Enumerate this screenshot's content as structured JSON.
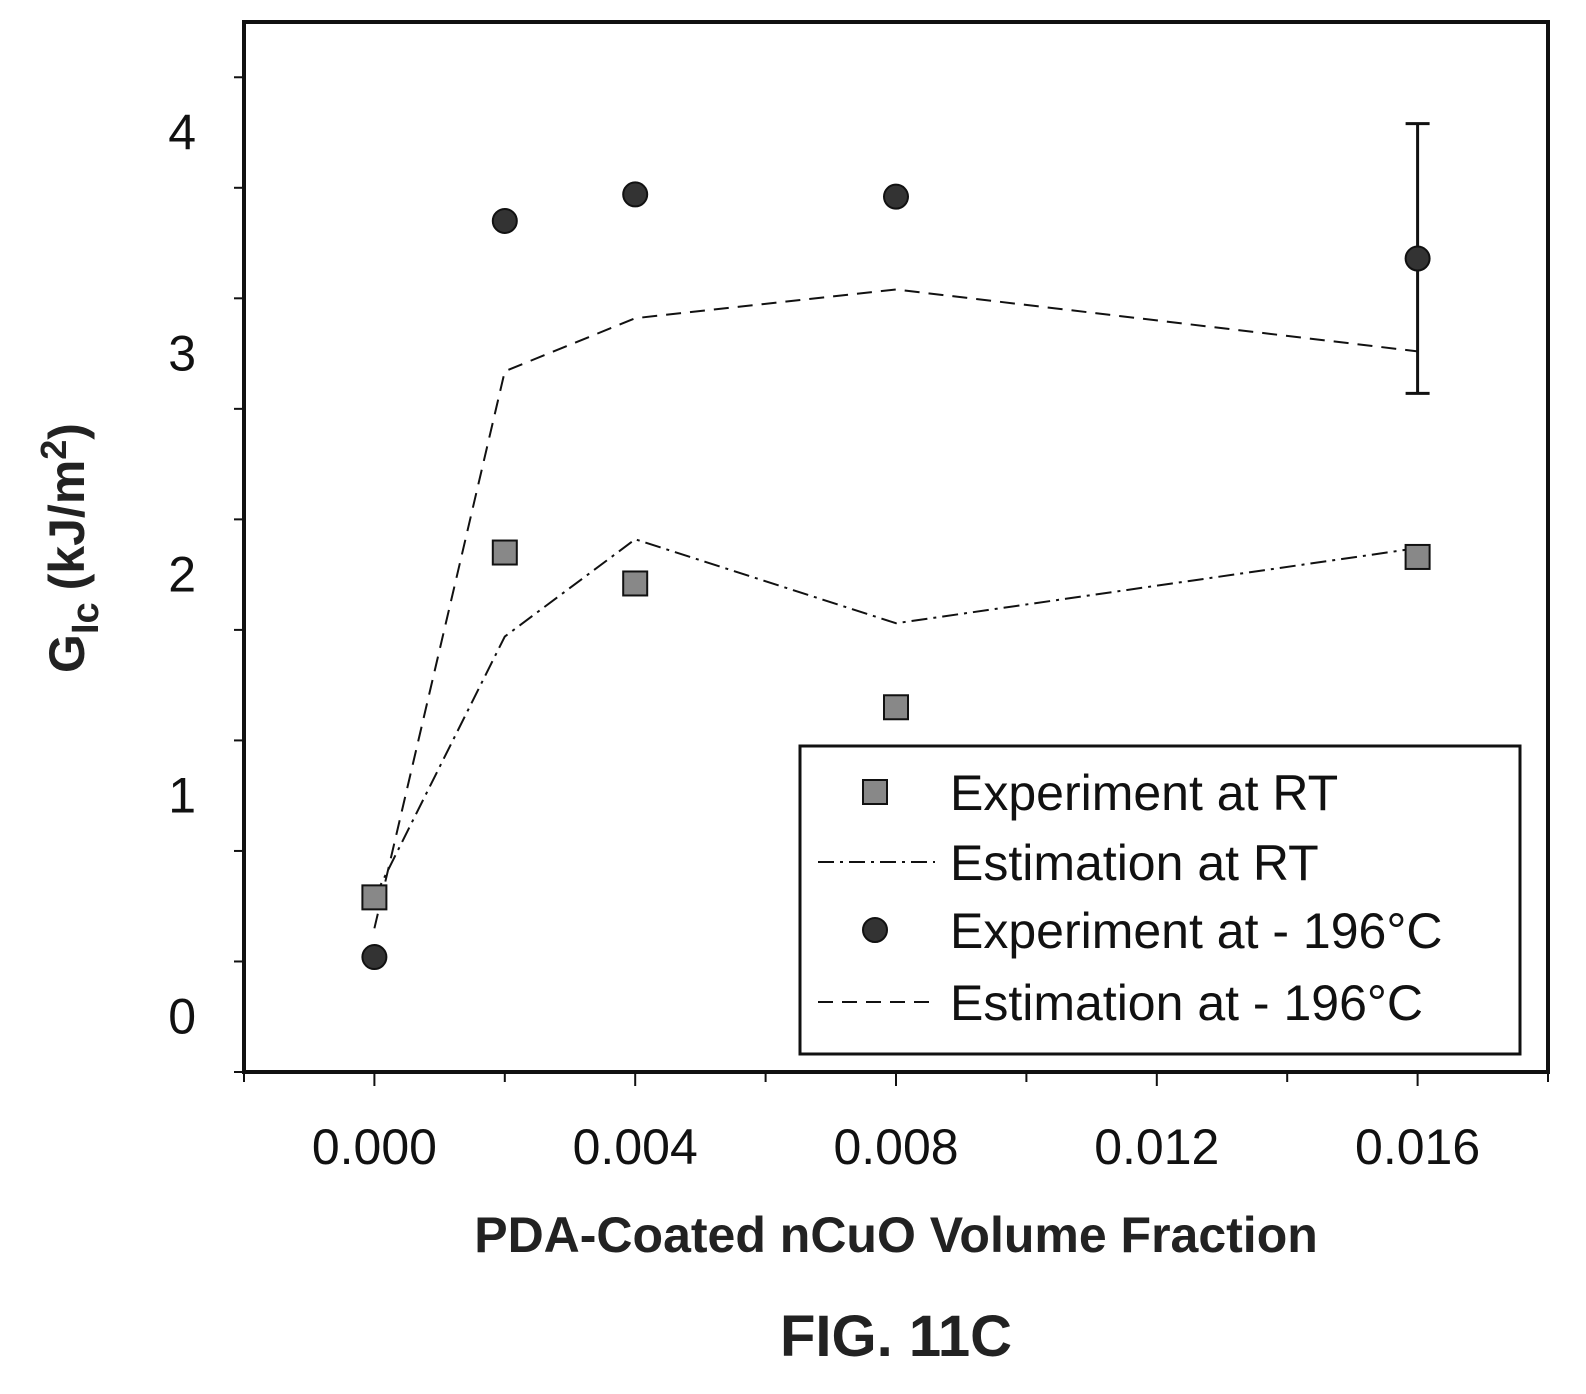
{
  "chart_data": {
    "type": "scatter",
    "xlabel": "PDA-Coated nCuO Volume Fraction",
    "ylabel_main": "G",
    "ylabel_sub": "Ic",
    "ylabel_rest": "(kJ/m",
    "ylabel_sup": "2",
    "ylabel_close": ")",
    "xlim": [
      -0.002,
      0.018
    ],
    "ylim": [
      -0.25,
      4.5
    ],
    "x_ticks": [
      0.0,
      0.004,
      0.008,
      0.012,
      0.016
    ],
    "x_tick_labels": [
      "0.000",
      "0.004",
      "0.008",
      "0.012",
      "0.016"
    ],
    "y_ticks": [
      0,
      1,
      2,
      3,
      4
    ],
    "y_tick_labels": [
      "0",
      "1",
      "2",
      "3",
      "4"
    ],
    "legend_position": "bottom-right",
    "series": [
      {
        "name": "Experiment at RT",
        "kind": "square",
        "color": "#888888",
        "x": [
          0.0,
          0.002,
          0.004,
          0.008,
          0.016
        ],
        "y": [
          0.54,
          2.1,
          1.96,
          1.4,
          2.08
        ]
      },
      {
        "name": "Estimation at RT",
        "kind": "dashdot",
        "color": "#111111",
        "x": [
          0.0,
          0.002,
          0.004,
          0.008,
          0.016
        ],
        "y": [
          0.54,
          1.72,
          2.16,
          1.78,
          2.12
        ]
      },
      {
        "name": "Experiment at - 196°C",
        "kind": "circle",
        "color": "#333333",
        "x": [
          0.0,
          0.002,
          0.004,
          0.008,
          0.016
        ],
        "y": [
          0.27,
          3.6,
          3.72,
          3.71,
          3.43
        ],
        "error": [
          null,
          null,
          null,
          null,
          0.61
        ]
      },
      {
        "name": "Estimation at - 196°C",
        "kind": "dashed",
        "color": "#111111",
        "x": [
          0.0,
          0.002,
          0.004,
          0.008,
          0.016
        ],
        "y": [
          0.4,
          2.92,
          3.16,
          3.29,
          3.01
        ]
      }
    ]
  },
  "caption": "FIG. 11C"
}
